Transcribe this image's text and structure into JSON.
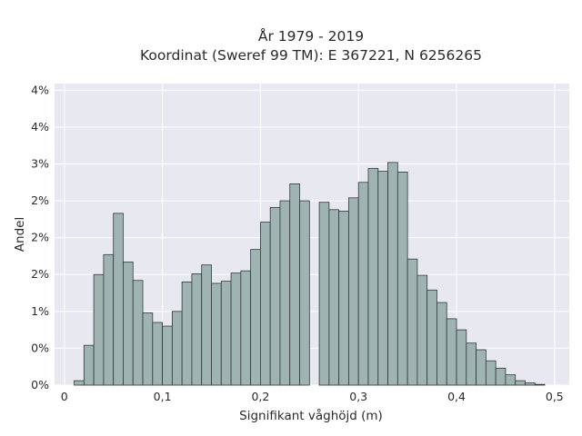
{
  "chart_data": {
    "type": "bar",
    "title": "År 1979 - 2019",
    "subtitle": "Koordinat (Sweref 99 TM): E 367221, N 6256265",
    "xlabel": "Signifikant våghöjd (m)",
    "ylabel": "Andel",
    "xlim": [
      -0.01,
      0.515
    ],
    "ylim": [
      0,
      0.0409
    ],
    "grid": true,
    "x_ticks": [
      {
        "value": 0,
        "label": "0"
      },
      {
        "value": 0.1,
        "label": "0,1"
      },
      {
        "value": 0.2,
        "label": "0,2"
      },
      {
        "value": 0.3,
        "label": "0,3"
      },
      {
        "value": 0.4,
        "label": "0,4"
      },
      {
        "value": 0.5,
        "label": "0,5"
      }
    ],
    "y_ticks": [
      {
        "value": 0,
        "label": "0%"
      },
      {
        "value": 0.005,
        "label": "0%"
      },
      {
        "value": 0.01,
        "label": "1%"
      },
      {
        "value": 0.015,
        "label": "2%"
      },
      {
        "value": 0.02,
        "label": "2%"
      },
      {
        "value": 0.025,
        "label": "2%"
      },
      {
        "value": 0.03,
        "label": "3%"
      },
      {
        "value": 0.035,
        "label": "4%"
      },
      {
        "value": 0.04,
        "label": "4%"
      }
    ],
    "bin_width": 0.01,
    "bin_starts": [
      0.01,
      0.02,
      0.03,
      0.04,
      0.05,
      0.06,
      0.07,
      0.08,
      0.09,
      0.1,
      0.11,
      0.12,
      0.13,
      0.14,
      0.15,
      0.16,
      0.17,
      0.18,
      0.19,
      0.2,
      0.21,
      0.22,
      0.23,
      0.24,
      0.25,
      0.26,
      0.27,
      0.28,
      0.29,
      0.3,
      0.31,
      0.32,
      0.33,
      0.34,
      0.35,
      0.36,
      0.37,
      0.38,
      0.39,
      0.4,
      0.41,
      0.42,
      0.43,
      0.44,
      0.45,
      0.46,
      0.47,
      0.48
    ],
    "values": [
      0.0006,
      0.0054,
      0.015,
      0.0177,
      0.0233,
      0.0167,
      0.0142,
      0.0098,
      0.0085,
      0.008,
      0.01,
      0.014,
      0.0151,
      0.0163,
      0.0138,
      0.0141,
      0.0152,
      0.0155,
      0.0184,
      0.0221,
      0.0241,
      0.025,
      0.0273,
      0.025,
      0.0,
      0.0248,
      0.0238,
      0.0236,
      0.0254,
      0.0275,
      0.0294,
      0.029,
      0.0302,
      0.0289,
      0.0171,
      0.0149,
      0.0129,
      0.0112,
      0.009,
      0.0075,
      0.0057,
      0.0048,
      0.0033,
      0.0023,
      0.0014,
      0.0006,
      0.0003,
      0.0001
    ]
  }
}
